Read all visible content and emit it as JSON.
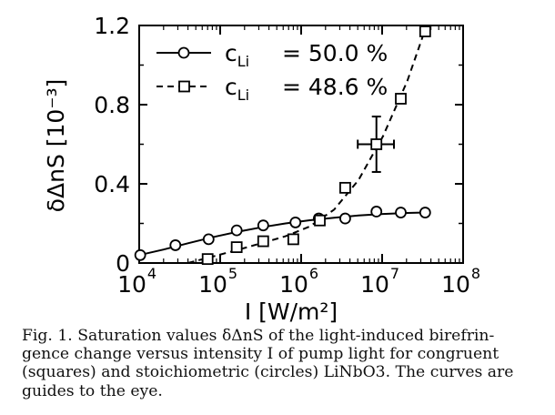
{
  "chart_data": {
    "type": "scatter",
    "title": "",
    "xlabel": "I [W/m²]",
    "ylabel": "δΔnS [10⁻³]",
    "xscale": "log",
    "xlim": [
      10000,
      100000000
    ],
    "ylim": [
      0,
      1.2
    ],
    "yticks": [
      0,
      0.4,
      0.8,
      1.2
    ],
    "ytick_labels": [
      "0",
      "0.4",
      "0.8",
      "1.2"
    ],
    "xtick_labels": [
      {
        "base": "10",
        "exp": "4"
      },
      {
        "base": "10",
        "exp": "5"
      },
      {
        "base": "10",
        "exp": "6"
      },
      {
        "base": "10",
        "exp": "7"
      },
      {
        "base": "10",
        "exp": "8"
      }
    ],
    "grid": false,
    "legend_position": "top-left",
    "series": [
      {
        "name": "cLi = 50.0 %",
        "legend_symbol": "c",
        "legend_subscript": "Li",
        "legend_value": "=  50.0 %",
        "marker": "circle",
        "line": "solid",
        "x": [
          10300,
          28000,
          72000,
          160000,
          340000,
          850000,
          1650000,
          3500000,
          8500000,
          17000000,
          34000000
        ],
        "y": [
          0.04,
          0.09,
          0.12,
          0.165,
          0.19,
          0.205,
          0.225,
          0.225,
          0.26,
          0.255,
          0.255
        ]
      },
      {
        "name": "cLi = 48.6 %",
        "legend_symbol": "c",
        "legend_subscript": "Li",
        "legend_value": "=  48.6 %",
        "marker": "square",
        "line": "dashed",
        "x": [
          70000,
          160000,
          340000,
          800000,
          1700000,
          3500000,
          8500000,
          17000000,
          34000000
        ],
        "y": [
          0.02,
          0.08,
          0.11,
          0.12,
          0.215,
          0.38,
          0.6,
          0.83,
          1.17
        ]
      }
    ],
    "guide_curves": [
      {
        "series": "cLi = 50.0 %",
        "x": [
          10000,
          20000,
          40000,
          80000,
          160000,
          320000,
          640000,
          1280000,
          2560000,
          5120000,
          10240000,
          20480000,
          34000000
        ],
        "y": [
          0.04,
          0.068,
          0.1,
          0.13,
          0.157,
          0.18,
          0.2,
          0.216,
          0.229,
          0.24,
          0.248,
          0.253,
          0.255
        ]
      },
      {
        "series": "cLi = 48.6 %",
        "x": [
          40000,
          80000,
          160000,
          320000,
          640000,
          1280000,
          2560000,
          5120000,
          10240000,
          20480000,
          34000000
        ],
        "y": [
          0.0,
          0.032,
          0.065,
          0.1,
          0.135,
          0.185,
          0.27,
          0.42,
          0.64,
          0.92,
          1.18
        ]
      }
    ],
    "error_bar": {
      "x": 8500000,
      "y": 0.6,
      "y_low": 0.46,
      "y_high": 0.74,
      "x_low": 5000000,
      "x_high": 14000000
    }
  },
  "caption": {
    "lines": [
      "Fig. 1.  Saturation values δΔnS of the light-induced birefrin-",
      "gence change versus intensity I of pump light for congruent",
      "(squares) and stoichiometric (circles) LiNbO3.  The curves are",
      "guides to the eye."
    ]
  }
}
